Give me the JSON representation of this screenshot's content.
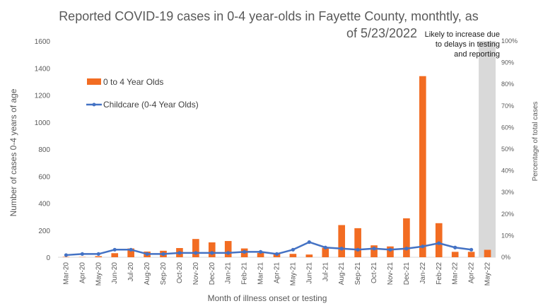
{
  "chart_data": {
    "type": "bar+line",
    "title_line1": "Reported COVID-19 cases in 0-4 year-olds in Fayette County, monthtly, as",
    "title_line2": "of 5/23/2022",
    "xlabel": "Month of illness onset or testing",
    "ylabel": "Number of cases 0-4 years of age",
    "y2label": "Percentage of total cases",
    "ylim": [
      0,
      1600
    ],
    "y2lim": [
      0,
      100
    ],
    "yticks": [
      "0",
      "200",
      "400",
      "600",
      "800",
      "1000",
      "1200",
      "1400",
      "1600"
    ],
    "y2ticks": [
      "0%",
      "10%",
      "20%",
      "30%",
      "40%",
      "50%",
      "60%",
      "70%",
      "80%",
      "90%",
      "100%"
    ],
    "categories": [
      "Mar-20",
      "Apr-20",
      "May-20",
      "Jun-20",
      "Jul-20",
      "Aug-20",
      "Sep-20",
      "Oct-20",
      "Nov-20",
      "Dec-20",
      "Jan-21",
      "Feb-21",
      "Mar-21",
      "Apr-21",
      "May-21",
      "Jun-21",
      "Jul-21",
      "Aug-21",
      "Sep-21",
      "Oct-21",
      "Nov-21",
      "Dec-21",
      "Jan-22",
      "Feb-22",
      "Mar-22",
      "Apr-22",
      "May-22"
    ],
    "series": [
      {
        "name": "0 to 4 Year Olds",
        "kind": "bar",
        "axis": "left",
        "color": "#f26c22",
        "values": [
          3,
          2,
          8,
          30,
          65,
          42,
          48,
          68,
          135,
          110,
          120,
          65,
          32,
          25,
          25,
          20,
          70,
          238,
          215,
          88,
          80,
          288,
          1340,
          252,
          40,
          40,
          55
        ]
      },
      {
        "name": "Childcare (0-4 Year Olds)",
        "kind": "line",
        "axis": "right",
        "color": "#4472c4",
        "values": [
          1,
          1.5,
          1.5,
          3.5,
          3.5,
          1.5,
          1.5,
          2,
          2,
          2,
          2,
          2.5,
          2.5,
          1.5,
          3.5,
          7,
          4.5,
          4,
          3.5,
          4,
          3.5,
          4,
          5,
          6.5,
          4.5,
          3.5,
          null
        ]
      }
    ],
    "legend_position": "upper-left",
    "shaded_region": {
      "from_category": "May-22",
      "color": "#d9d9d9",
      "note": [
        "Likely to increase due",
        "to delays in testing",
        "and reporting"
      ]
    }
  }
}
